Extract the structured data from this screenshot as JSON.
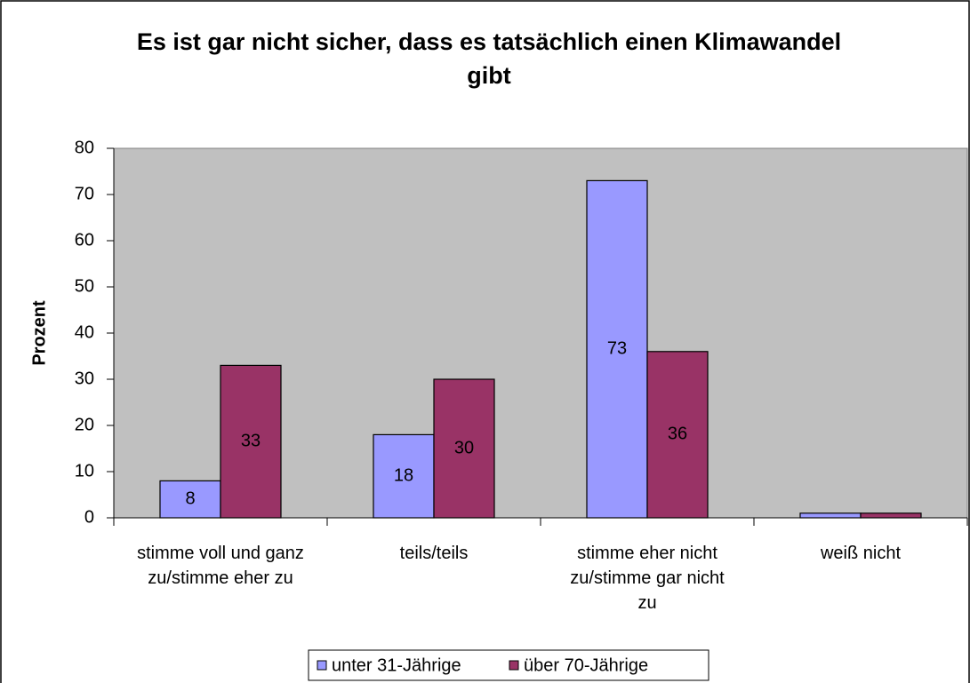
{
  "chart_data": {
    "type": "bar",
    "title": "Es ist gar nicht sicher, dass es tatsächlich einen Klimawandel gibt",
    "y_label": "Prozent",
    "categories": [
      "stimme voll und ganz zu/stimme eher zu",
      "teils/teils",
      "stimme eher nicht zu/stimme gar nicht zu",
      "weiß nicht"
    ],
    "series": [
      {
        "name": "unter 31-Jährige",
        "color": "#9999ff",
        "values": [
          8,
          18,
          73,
          1
        ],
        "value_labels": [
          "8",
          "18",
          "73",
          null
        ]
      },
      {
        "name": "über 70-Jährige",
        "color": "#993366",
        "values": [
          33,
          30,
          36,
          1
        ],
        "value_labels": [
          "33",
          "30",
          "36",
          null
        ]
      }
    ],
    "ylim": [
      0,
      80
    ],
    "yticks": [
      0,
      10,
      20,
      30,
      40,
      50,
      60,
      70,
      80
    ],
    "plot_background": "#c0c0c0",
    "legend": "bottom"
  }
}
